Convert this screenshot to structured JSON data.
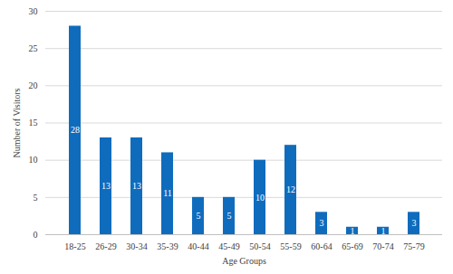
{
  "chart_data": {
    "type": "bar",
    "categories": [
      "18-25",
      "26-29",
      "30-34",
      "35-39",
      "40-44",
      "45-49",
      "50-54",
      "55-59",
      "60-64",
      "65-69",
      "70-74",
      "75-79"
    ],
    "values": [
      28,
      13,
      13,
      11,
      5,
      5,
      10,
      12,
      3,
      1,
      1,
      3
    ],
    "color": "#0f6cbd",
    "x_label": "Age Groups",
    "y_label": "Number of Visitors",
    "ylim": [
      0,
      30
    ],
    "yticks": [
      0,
      5,
      10,
      15,
      20,
      25,
      30
    ],
    "grid": true,
    "data_labels": true
  }
}
